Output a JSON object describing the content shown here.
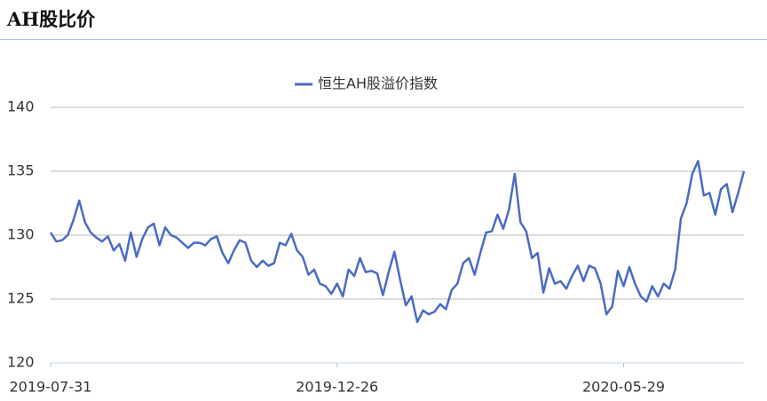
{
  "header": {
    "title": "AH股比价"
  },
  "chart_data": {
    "type": "line",
    "series": [
      {
        "name": "恒生AH股溢价指数",
        "color": "#4a6bc5",
        "values": [
          130.2,
          129.5,
          129.6,
          130.0,
          131.2,
          132.7,
          131.0,
          130.2,
          129.8,
          129.5,
          129.9,
          128.8,
          129.3,
          128.0,
          130.2,
          128.3,
          129.7,
          130.6,
          130.9,
          129.2,
          130.6,
          130.0,
          129.8,
          129.4,
          129.0,
          129.4,
          129.4,
          129.2,
          129.7,
          129.9,
          128.6,
          127.8,
          128.8,
          129.6,
          129.4,
          128.0,
          127.5,
          128.0,
          127.6,
          127.8,
          129.4,
          129.2,
          130.1,
          128.8,
          128.3,
          126.9,
          127.3,
          126.2,
          126.0,
          125.4,
          126.2,
          125.2,
          127.3,
          126.8,
          128.2,
          127.1,
          127.2,
          127.0,
          125.3,
          127.1,
          128.7,
          126.5,
          124.5,
          125.2,
          123.2,
          124.1,
          123.8,
          124.0,
          124.6,
          124.2,
          125.7,
          126.2,
          127.8,
          128.2,
          126.9,
          128.6,
          130.2,
          130.3,
          131.6,
          130.5,
          132.0,
          134.8,
          131.0,
          130.3,
          128.2,
          128.6,
          125.5,
          127.4,
          126.2,
          126.4,
          125.8,
          126.8,
          127.6,
          126.4,
          127.6,
          127.4,
          126.2,
          123.8,
          124.4,
          127.2,
          126.0,
          127.5,
          126.2,
          125.2,
          124.8,
          126.0,
          125.2,
          126.2,
          125.8,
          127.3,
          131.3,
          132.5,
          134.8,
          135.8,
          133.1,
          133.3,
          131.6,
          133.6,
          134.0,
          131.8,
          133.3,
          135.0
        ]
      }
    ],
    "categories": [
      "2019-07-31",
      null,
      null,
      null,
      null,
      null,
      null,
      null,
      null,
      null,
      null,
      null,
      null,
      null,
      null,
      null,
      null,
      null,
      null,
      null,
      null,
      null,
      null,
      null,
      null,
      null,
      null,
      null,
      null,
      null,
      null,
      null,
      null,
      null,
      null,
      null,
      null,
      null,
      null,
      null,
      null,
      null,
      null,
      null,
      null,
      null,
      null,
      null,
      null,
      null,
      "2019-12-26",
      null,
      null,
      null,
      null,
      null,
      null,
      null,
      null,
      null,
      null,
      null,
      null,
      null,
      null,
      null,
      null,
      null,
      null,
      null,
      null,
      null,
      null,
      null,
      null,
      null,
      null,
      null,
      null,
      null,
      null,
      null,
      null,
      null,
      null,
      null,
      null,
      null,
      null,
      null,
      null,
      null,
      null,
      null,
      null,
      null,
      null,
      null,
      null,
      null,
      "2020-05-29",
      null,
      null,
      null,
      null,
      null,
      null,
      null,
      null,
      null,
      null,
      null,
      null,
      null,
      null,
      null,
      null,
      null,
      null,
      null,
      null,
      null
    ],
    "ylim": [
      120,
      140
    ],
    "yticks": [
      120,
      125,
      130,
      135,
      140
    ],
    "grid": true
  }
}
